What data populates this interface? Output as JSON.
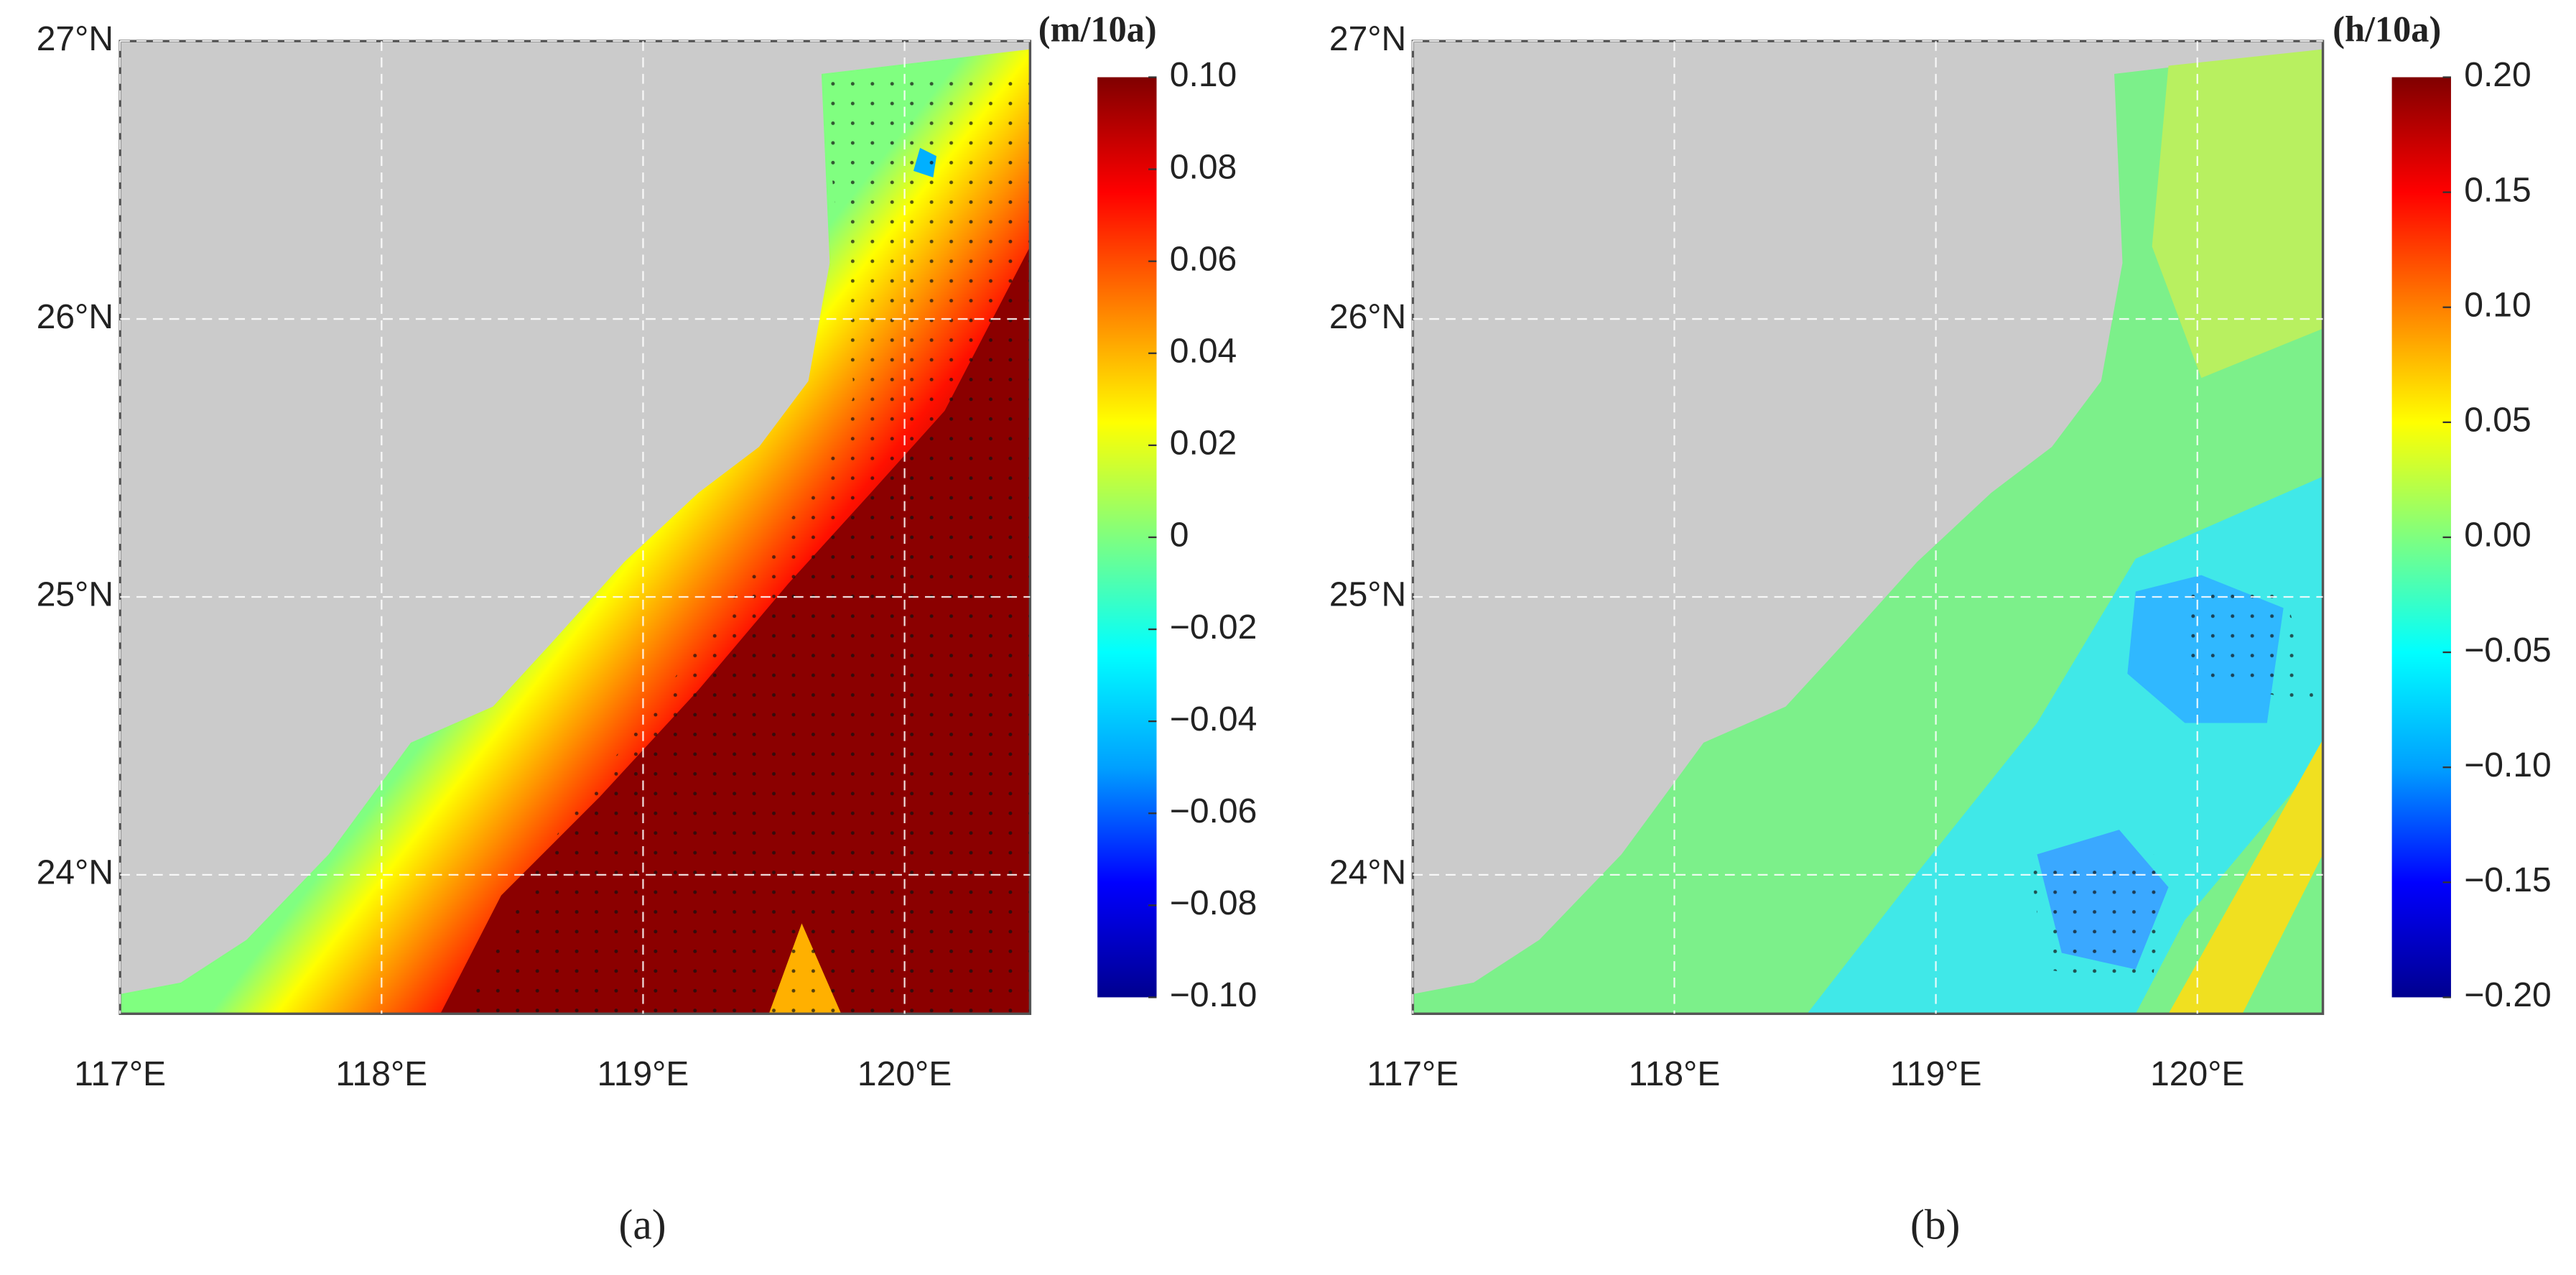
{
  "chart_data": [
    {
      "type": "map",
      "panel_label": "(a)",
      "xlim": [
        117,
        120.48
      ],
      "ylim": [
        23.5,
        27
      ],
      "xticks": [
        {
          "value": 117,
          "label": "117°E"
        },
        {
          "value": 118,
          "label": "118°E"
        },
        {
          "value": 119,
          "label": "119°E"
        },
        {
          "value": 120,
          "label": "120°E"
        }
      ],
      "yticks": [
        {
          "value": 24,
          "label": "24°N"
        },
        {
          "value": 25,
          "label": "25°N"
        },
        {
          "value": 26,
          "label": "26°N"
        },
        {
          "value": 27,
          "label": "27°N"
        }
      ],
      "grid": true,
      "colorbar": {
        "unit": "(m/10a)",
        "lim": [
          -0.1,
          0.1
        ],
        "colormap": [
          "#00008f",
          "#0000ff",
          "#00a0ff",
          "#00ffff",
          "#7fff7f",
          "#ffff00",
          "#ff8000",
          "#ff0000",
          "#800000"
        ],
        "ticks": [
          {
            "value": 0.1,
            "label": "0.10"
          },
          {
            "value": 0.08,
            "label": "0.08"
          },
          {
            "value": 0.06,
            "label": "0.06"
          },
          {
            "value": 0.04,
            "label": "0.04"
          },
          {
            "value": 0.02,
            "label": "0.02"
          },
          0,
          {
            "value": -0.02,
            "label": "−0.02"
          },
          {
            "value": -0.04,
            "label": "−0.04"
          },
          {
            "value": -0.06,
            "label": "−0.06"
          },
          {
            "value": -0.08,
            "label": "−0.08"
          },
          {
            "value": -0.1,
            "label": "−0.10"
          }
        ]
      }
    },
    {
      "type": "map",
      "panel_label": "(b)",
      "xlim": [
        117,
        120.48
      ],
      "ylim": [
        23.5,
        27
      ],
      "xticks": [
        {
          "value": 117,
          "label": "117°E"
        },
        {
          "value": 118,
          "label": "118°E"
        },
        {
          "value": 119,
          "label": "119°E"
        },
        {
          "value": 120,
          "label": "120°E"
        }
      ],
      "yticks": [
        {
          "value": 24,
          "label": "24°N"
        },
        {
          "value": 25,
          "label": "25°N"
        },
        {
          "value": 26,
          "label": "26°N"
        },
        {
          "value": 27,
          "label": "27°N"
        }
      ],
      "grid": true,
      "colorbar": {
        "unit": "(h/10a)",
        "lim": [
          -0.2,
          0.2
        ],
        "colormap": [
          "#00008f",
          "#0000ff",
          "#00a0ff",
          "#00ffff",
          "#7fff7f",
          "#ffff00",
          "#ff8000",
          "#ff0000",
          "#800000"
        ],
        "ticks": [
          {
            "value": 0.2,
            "label": "0.20"
          },
          {
            "value": 0.15,
            "label": "0.15"
          },
          {
            "value": 0.1,
            "label": "0.10"
          },
          {
            "value": 0.05,
            "label": "0.05"
          },
          {
            "value": 0,
            "label": "0.00"
          },
          {
            "value": -0.05,
            "label": "−0.05"
          },
          {
            "value": -0.1,
            "label": "−0.10"
          },
          {
            "value": -0.15,
            "label": "−0.15"
          },
          {
            "value": -0.2,
            "label": "−0.20"
          }
        ]
      }
    }
  ]
}
